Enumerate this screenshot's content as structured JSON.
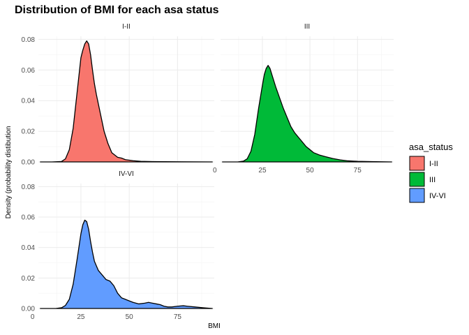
{
  "chart_data": {
    "type": "area",
    "title": "Distribution of BMI for each asa status",
    "xlabel": "BMI",
    "ylabel": "Density (probability distibution",
    "xlim": [
      3,
      94
    ],
    "ylim": [
      0,
      0.082
    ],
    "x_ticks": [
      0,
      25,
      50,
      75
    ],
    "y_ticks": [
      0.0,
      0.02,
      0.04,
      0.06,
      0.08
    ],
    "y_tick_labels": [
      "0.00",
      "0.02",
      "0.04",
      "0.06",
      "0.08"
    ],
    "grid": true,
    "legend": {
      "title": "asa_status",
      "position": "right"
    },
    "series": [
      {
        "name": "I-II",
        "color": "#F8766D",
        "points": [
          [
            4,
            0
          ],
          [
            10,
            0
          ],
          [
            15,
            0.0003
          ],
          [
            17,
            0.002
          ],
          [
            19,
            0.008
          ],
          [
            21,
            0.022
          ],
          [
            23,
            0.045
          ],
          [
            25,
            0.068
          ],
          [
            26,
            0.073
          ],
          [
            27,
            0.077
          ],
          [
            28,
            0.079
          ],
          [
            29,
            0.077
          ],
          [
            30,
            0.07
          ],
          [
            31,
            0.06
          ],
          [
            32,
            0.051
          ],
          [
            33,
            0.044
          ],
          [
            34,
            0.038
          ],
          [
            35,
            0.032
          ],
          [
            36,
            0.026
          ],
          [
            37,
            0.02
          ],
          [
            38,
            0.016
          ],
          [
            39,
            0.012
          ],
          [
            40,
            0.009
          ],
          [
            41,
            0.006
          ],
          [
            42,
            0.005
          ],
          [
            44,
            0.003
          ],
          [
            46,
            0.0025
          ],
          [
            48,
            0.0015
          ],
          [
            52,
            0.0008
          ],
          [
            56,
            0.0004
          ],
          [
            62,
            0.0002
          ],
          [
            75,
            0.0001
          ],
          [
            93,
            0
          ]
        ]
      },
      {
        "name": "III",
        "color": "#00BA38",
        "points": [
          [
            4,
            0
          ],
          [
            12,
            0
          ],
          [
            15,
            0.0005
          ],
          [
            17,
            0.002
          ],
          [
            19,
            0.007
          ],
          [
            21,
            0.018
          ],
          [
            23,
            0.035
          ],
          [
            25,
            0.05
          ],
          [
            26,
            0.057
          ],
          [
            27,
            0.061
          ],
          [
            28,
            0.063
          ],
          [
            29,
            0.061
          ],
          [
            30,
            0.057
          ],
          [
            32,
            0.049
          ],
          [
            34,
            0.042
          ],
          [
            36,
            0.035
          ],
          [
            38,
            0.029
          ],
          [
            40,
            0.023
          ],
          [
            42,
            0.019
          ],
          [
            44,
            0.016
          ],
          [
            46,
            0.013
          ],
          [
            48,
            0.01
          ],
          [
            50,
            0.008
          ],
          [
            52,
            0.006
          ],
          [
            55,
            0.0045
          ],
          [
            58,
            0.0035
          ],
          [
            62,
            0.0022
          ],
          [
            66,
            0.0013
          ],
          [
            70,
            0.0007
          ],
          [
            75,
            0.0004
          ],
          [
            82,
            0.0002
          ],
          [
            93,
            0
          ]
        ]
      },
      {
        "name": "IV-VI",
        "color": "#619CFF",
        "points": [
          [
            4,
            0
          ],
          [
            12,
            0
          ],
          [
            15,
            0.0005
          ],
          [
            17,
            0.002
          ],
          [
            19,
            0.006
          ],
          [
            21,
            0.016
          ],
          [
            23,
            0.032
          ],
          [
            25,
            0.049
          ],
          [
            26,
            0.055
          ],
          [
            27,
            0.058
          ],
          [
            28,
            0.057
          ],
          [
            29,
            0.052
          ],
          [
            30,
            0.044
          ],
          [
            31,
            0.037
          ],
          [
            32,
            0.031
          ],
          [
            34,
            0.025
          ],
          [
            36,
            0.022
          ],
          [
            38,
            0.019
          ],
          [
            40,
            0.018
          ],
          [
            42,
            0.015
          ],
          [
            44,
            0.01
          ],
          [
            46,
            0.007
          ],
          [
            48,
            0.006
          ],
          [
            50,
            0.005
          ],
          [
            52,
            0.004
          ],
          [
            55,
            0.003
          ],
          [
            58,
            0.0035
          ],
          [
            60,
            0.004
          ],
          [
            62,
            0.0035
          ],
          [
            64,
            0.003
          ],
          [
            66,
            0.0025
          ],
          [
            68,
            0.0015
          ],
          [
            70,
            0.001
          ],
          [
            72,
            0.001
          ],
          [
            75,
            0.0015
          ],
          [
            78,
            0.0018
          ],
          [
            80,
            0.0015
          ],
          [
            84,
            0.001
          ],
          [
            88,
            0.0005
          ],
          [
            93,
            0
          ]
        ]
      }
    ]
  }
}
